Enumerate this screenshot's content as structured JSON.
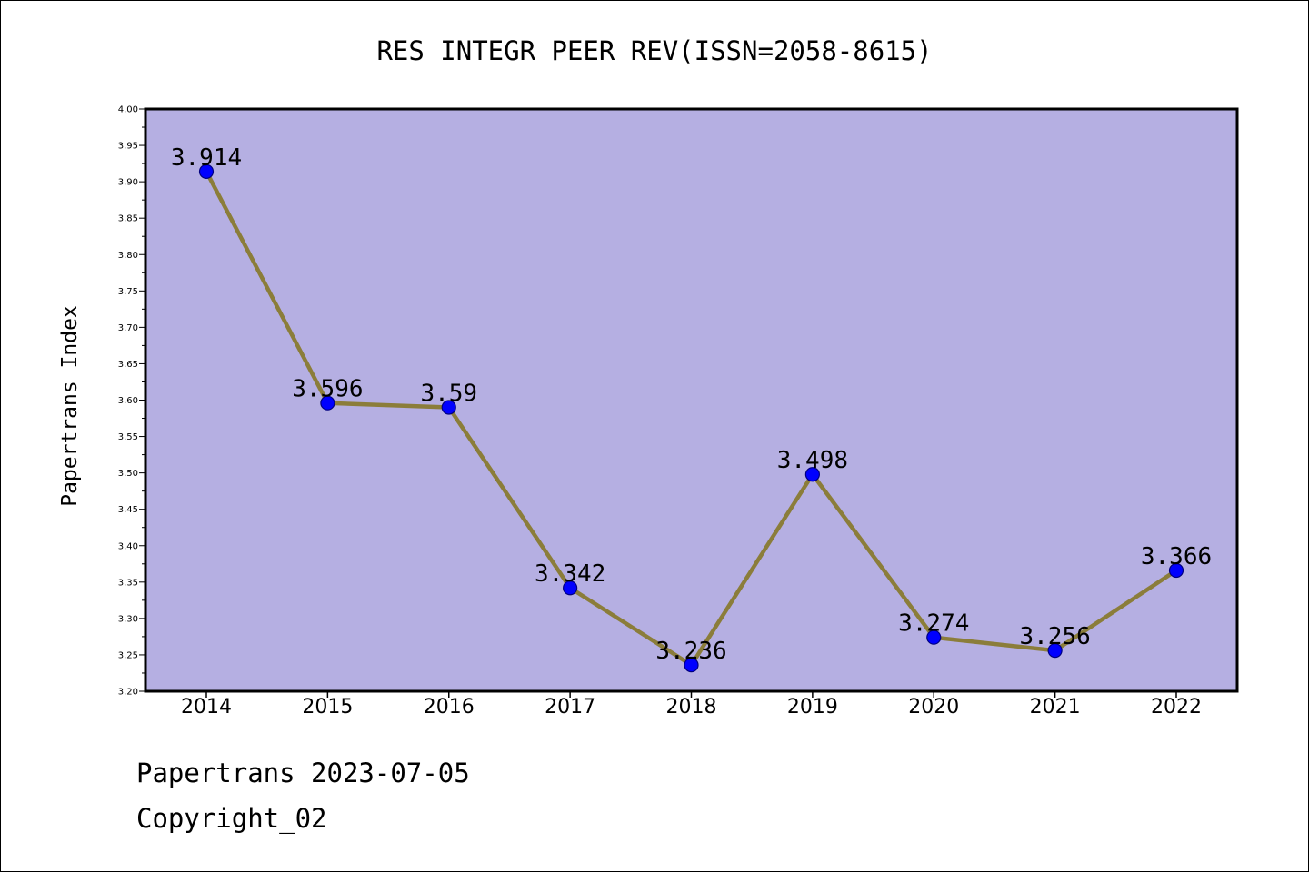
{
  "chart_data": {
    "type": "line",
    "title": "RES INTEGR PEER REV(ISSN=2058-8615)",
    "xlabel": "",
    "ylabel": "Papertrans Index",
    "categories": [
      "2014",
      "2015",
      "2016",
      "2017",
      "2018",
      "2019",
      "2020",
      "2021",
      "2022"
    ],
    "values": [
      3.914,
      3.596,
      3.59,
      3.342,
      3.236,
      3.498,
      3.274,
      3.256,
      3.366
    ],
    "data_labels": [
      "3.914",
      "3.596",
      "3.59",
      "3.342",
      "3.236",
      "3.498",
      "3.274",
      "3.256",
      "3.366"
    ],
    "ylim": [
      3.2,
      4.0
    ],
    "yticks": [
      "3.20",
      "3.25",
      "3.30",
      "3.35",
      "3.40",
      "3.45",
      "3.50",
      "3.55",
      "3.60",
      "3.65",
      "3.70",
      "3.75",
      "3.80",
      "3.85",
      "3.90",
      "3.95",
      "4.00"
    ],
    "grid": false,
    "legend": "none",
    "colors": {
      "plot_background": "#b5afe2",
      "line": "#8b7d3a",
      "marker_fill": "#0000ff",
      "marker_edge": "#000080"
    }
  },
  "footer": {
    "line1": "Papertrans 2023-07-05",
    "line2": "Copyright_02"
  }
}
